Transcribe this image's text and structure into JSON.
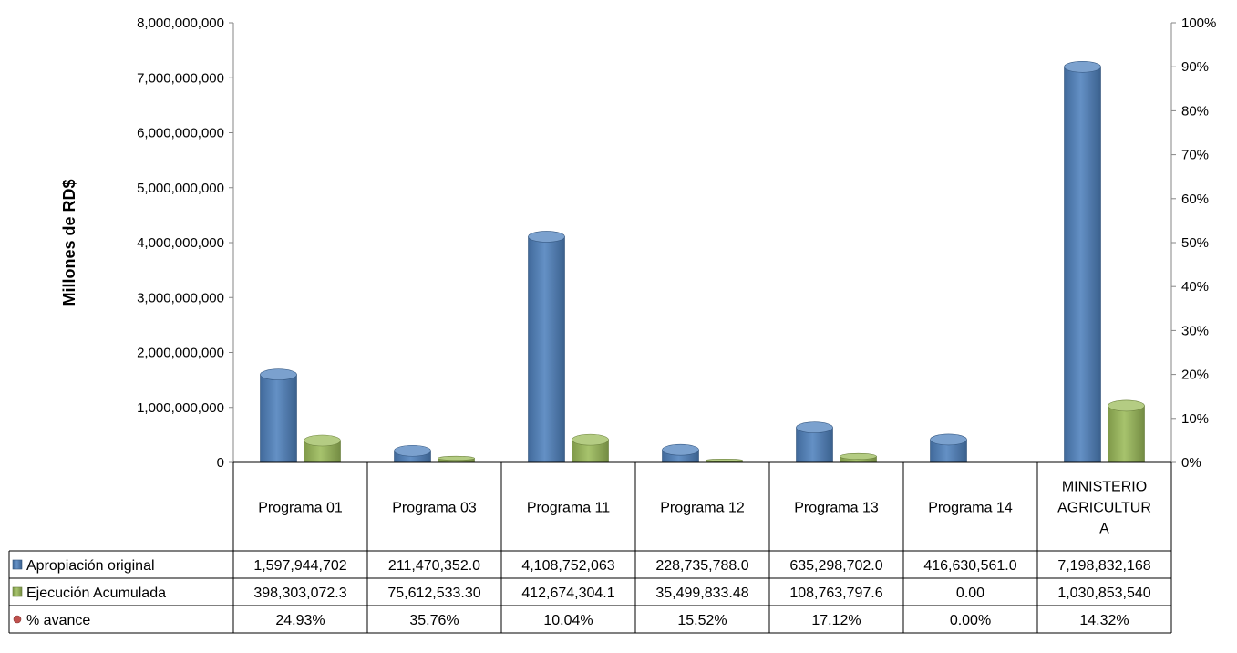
{
  "chart_data": {
    "type": "bar",
    "title": "",
    "ylabel": "Millones de RD$",
    "y_ticks": [
      "0",
      "1,000,000,000",
      "2,000,000,000",
      "3,000,000,000",
      "4,000,000,000",
      "5,000,000,000",
      "6,000,000,000",
      "7,000,000,000",
      "8,000,000,000"
    ],
    "ylim": [
      0,
      8000000000
    ],
    "y2_ticks": [
      "0%",
      "10%",
      "20%",
      "30%",
      "40%",
      "50%",
      "60%",
      "70%",
      "80%",
      "90%",
      "100%"
    ],
    "y2lim": [
      0,
      1
    ],
    "categories": [
      [
        "Programa 01"
      ],
      [
        "Programa 03"
      ],
      [
        "Programa 11"
      ],
      [
        "Programa 12"
      ],
      [
        "Programa 13"
      ],
      [
        "Programa 14"
      ],
      [
        "MINISTERIO",
        "AGRICULTUR",
        "A"
      ]
    ],
    "series": [
      {
        "name": "Apropiación original",
        "color": "#4f81bd",
        "values": [
          1597944702,
          211470352,
          4108752063,
          228735788,
          635298702,
          416630561,
          7198832168
        ],
        "labels": [
          "1,597,944,702",
          "211,470,352.0",
          "4,108,752,063",
          "228,735,788.0",
          "635,298,702.0",
          "416,630,561.0",
          "7,198,832,168"
        ]
      },
      {
        "name": "Ejecución Acumulada",
        "color": "#9bbb59",
        "values": [
          398303072.3,
          75612533.3,
          412674304.1,
          35499833.48,
          108763797.6,
          0,
          1030853540
        ],
        "labels": [
          "398,303,072.3",
          "75,612,533.30",
          "412,674,304.1",
          "35,499,833.48",
          "108,763,797.6",
          "0.00",
          "1,030,853,540"
        ]
      },
      {
        "name": "% avance",
        "color": "#c0504d",
        "axis": "secondary",
        "values": [
          0.2493,
          0.3576,
          0.1004,
          0.1552,
          0.1712,
          0.0,
          0.1432
        ],
        "labels": [
          "24.93%",
          "35.76%",
          "10.04%",
          "15.52%",
          "17.12%",
          "0.00%",
          "14.32%"
        ]
      }
    ],
    "grid": false,
    "legend": "data-table"
  }
}
